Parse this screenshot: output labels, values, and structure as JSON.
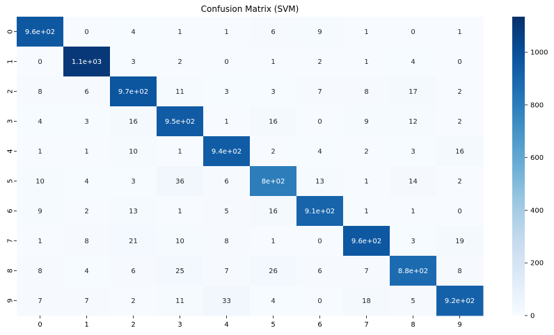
{
  "chart_data": {
    "type": "heatmap",
    "title": "Confusion Matrix (SVM)",
    "xlabel": "",
    "ylabel": "",
    "x_categories": [
      "0",
      "1",
      "2",
      "3",
      "4",
      "5",
      "6",
      "7",
      "8",
      "9"
    ],
    "y_categories": [
      "0",
      "1",
      "2",
      "3",
      "4",
      "5",
      "6",
      "7",
      "8",
      "9"
    ],
    "values": [
      [
        960,
        0,
        4,
        1,
        1,
        6,
        9,
        1,
        0,
        1
      ],
      [
        0,
        1100,
        3,
        2,
        0,
        1,
        2,
        1,
        4,
        0
      ],
      [
        8,
        6,
        970,
        11,
        3,
        3,
        7,
        8,
        17,
        2
      ],
      [
        4,
        3,
        16,
        950,
        1,
        16,
        0,
        9,
        12,
        2
      ],
      [
        1,
        1,
        10,
        1,
        940,
        2,
        4,
        2,
        3,
        16
      ],
      [
        10,
        4,
        3,
        36,
        6,
        800,
        13,
        1,
        14,
        2
      ],
      [
        9,
        2,
        13,
        1,
        5,
        16,
        910,
        1,
        1,
        0
      ],
      [
        1,
        8,
        21,
        10,
        8,
        1,
        0,
        960,
        3,
        19
      ],
      [
        8,
        4,
        6,
        25,
        7,
        26,
        6,
        7,
        880,
        8
      ],
      [
        7,
        7,
        2,
        11,
        33,
        4,
        0,
        18,
        5,
        920
      ]
    ],
    "cell_labels": [
      [
        "9.6e+02",
        "0",
        "4",
        "1",
        "1",
        "6",
        "9",
        "1",
        "0",
        "1"
      ],
      [
        "0",
        "1.1e+03",
        "3",
        "2",
        "0",
        "1",
        "2",
        "1",
        "4",
        "0"
      ],
      [
        "8",
        "6",
        "9.7e+02",
        "11",
        "3",
        "3",
        "7",
        "8",
        "17",
        "2"
      ],
      [
        "4",
        "3",
        "16",
        "9.5e+02",
        "1",
        "16",
        "0",
        "9",
        "12",
        "2"
      ],
      [
        "1",
        "1",
        "10",
        "1",
        "9.4e+02",
        "2",
        "4",
        "2",
        "3",
        "16"
      ],
      [
        "10",
        "4",
        "3",
        "36",
        "6",
        "8e+02",
        "13",
        "1",
        "14",
        "2"
      ],
      [
        "9",
        "2",
        "13",
        "1",
        "5",
        "16",
        "9.1e+02",
        "1",
        "1",
        "0"
      ],
      [
        "1",
        "8",
        "21",
        "10",
        "8",
        "1",
        "0",
        "9.6e+02",
        "3",
        "19"
      ],
      [
        "8",
        "4",
        "6",
        "25",
        "7",
        "26",
        "6",
        "7",
        "8.8e+02",
        "8"
      ],
      [
        "7",
        "7",
        "2",
        "11",
        "33",
        "4",
        "0",
        "18",
        "5",
        "9.2e+02"
      ]
    ],
    "colorbar": {
      "min": 0,
      "max": 1135,
      "ticks": [
        0,
        200,
        400,
        600,
        800,
        1000
      ],
      "tick_labels": [
        "0",
        "200",
        "400",
        "600",
        "800",
        "1000"
      ],
      "colormap": "Blues",
      "low_color": "#f7fbff",
      "high_color": "#08306b"
    },
    "grid": false,
    "legend": "colorbar-right"
  }
}
